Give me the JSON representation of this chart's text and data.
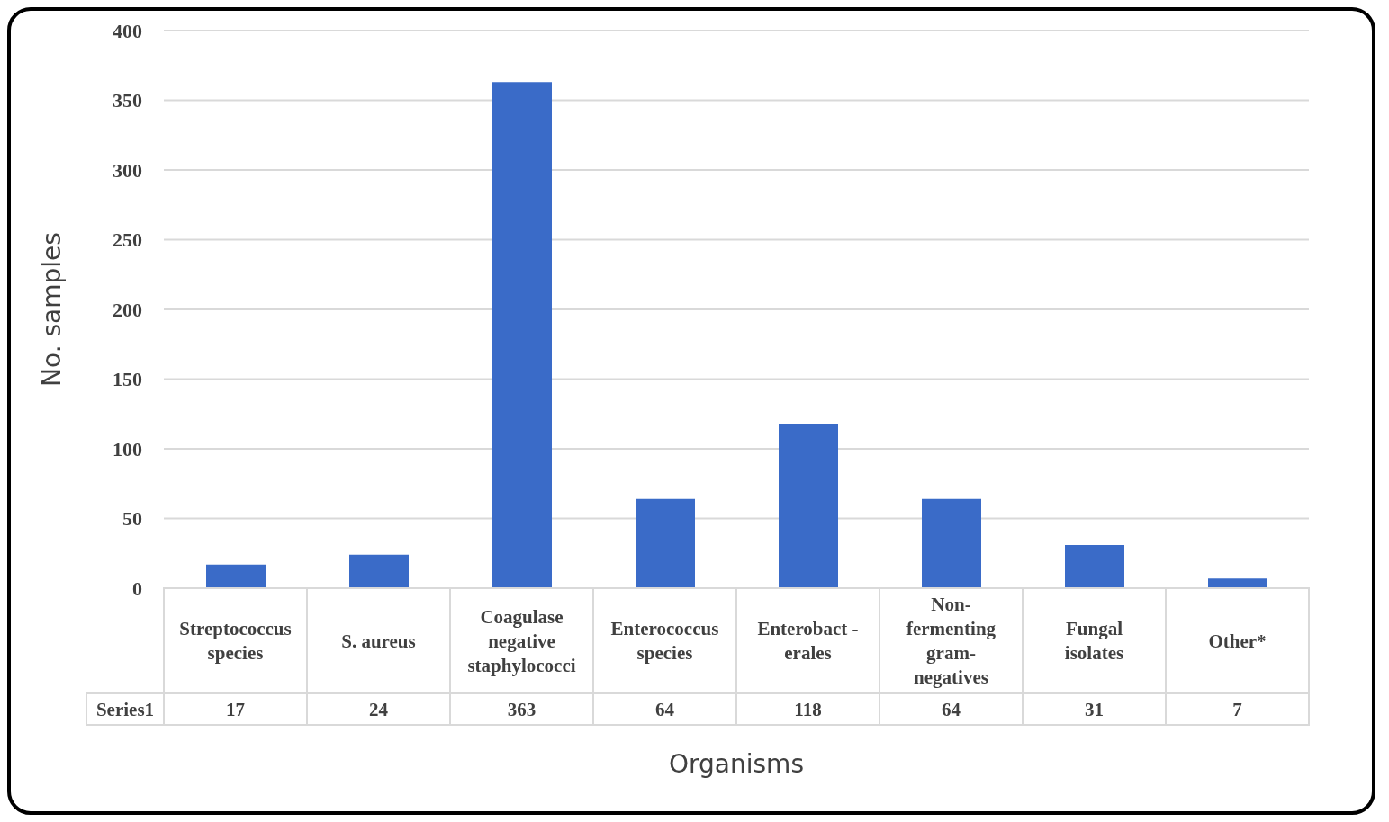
{
  "chart_data": {
    "type": "bar",
    "xlabel": "Organisms",
    "ylabel": "No. samples",
    "categories": [
      "Streptococcus species",
      "S. aureus",
      "Coagulase negative staphylococci",
      "Enterococcus species",
      "Enterobact -erales",
      "Non-fermenting gram-negatives",
      "Fungal isolates",
      "Other*"
    ],
    "series": [
      {
        "name": "Series1",
        "color": "#3a6bc8",
        "values": [
          17,
          24,
          363,
          64,
          118,
          64,
          31,
          7
        ]
      }
    ],
    "ylim": [
      0,
      400
    ],
    "yticks": [
      0,
      50,
      100,
      150,
      200,
      250,
      300,
      350,
      400
    ],
    "grid": "y",
    "data_labels": true
  }
}
